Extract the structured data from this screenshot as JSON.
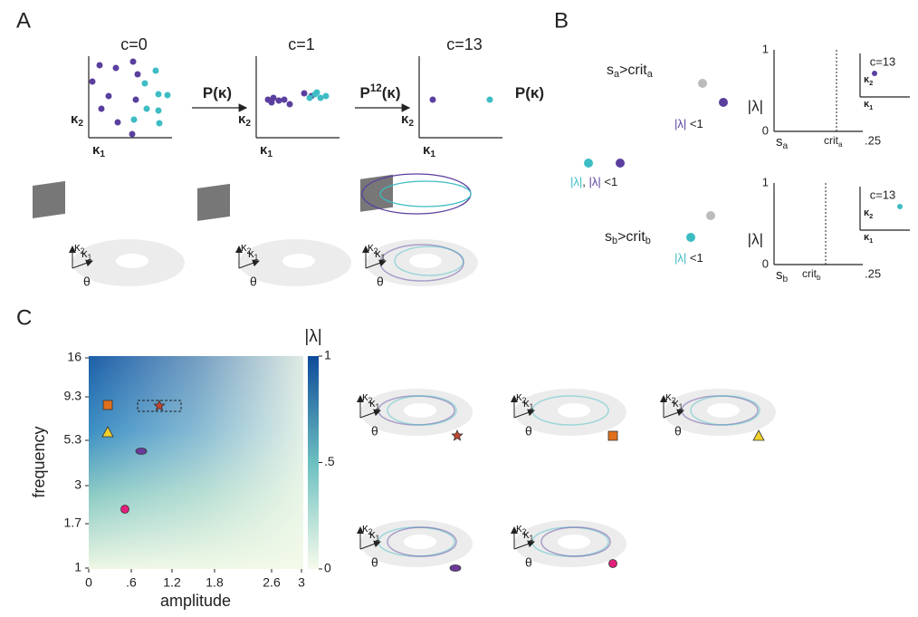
{
  "panel_labels": [
    "A",
    "B",
    "C"
  ],
  "A": {
    "plots": [
      {
        "title": "c=0"
      },
      {
        "title": "c=1"
      },
      {
        "title": "c=13"
      }
    ],
    "axis": {
      "x": {
        "base": "κ",
        "sub": "1"
      },
      "y": {
        "base": "κ",
        "sub": "2"
      }
    },
    "maps": [
      {
        "pre": "P(κ)"
      },
      {
        "pre": "P",
        "sup": "12",
        "post": "(κ)"
      },
      {
        "pre": "P(κ)"
      }
    ]
  },
  "torus_axes": {
    "k2": {
      "base": "κ",
      "sub": "2"
    },
    "k1": {
      "base": "κ",
      "sub": "1"
    },
    "theta": "θ"
  },
  "B": {
    "transitions": [
      {
        "s": "s",
        "s_sub": "a",
        "rel": ">crit",
        "crit_sub": "a"
      },
      {
        "s": "s",
        "s_sub": "b",
        "rel": ">crit",
        "crit_sub": "b"
      }
    ],
    "start_stability": {
      "teal": "|λ|",
      "sep": ", ",
      "purple": "|λ|",
      "rest": " <1"
    },
    "a_stability": {
      "purple": "|λ|",
      "rest": " <1"
    },
    "b_stability": {
      "teal": "|λ|",
      "rest": " <1"
    },
    "plots": [
      {
        "y_label": "|λ|",
        "yticks": [
          "1",
          "0"
        ],
        "x_start": {
          "base": "s",
          "sub": "a"
        },
        "crit": {
          "base": "crit",
          "sub": "a"
        },
        "x_end": ".25",
        "inset_title": "c=13"
      },
      {
        "y_label": "|λ|",
        "yticks": [
          "1",
          "0"
        ],
        "x_start": {
          "base": "s",
          "sub": "b"
        },
        "crit": {
          "base": "crit",
          "sub": "b"
        },
        "x_end": ".25",
        "inset_title": "c=13"
      }
    ]
  },
  "C": {
    "y_label": "frequency",
    "x_label": "amplitude",
    "yticks": [
      "16",
      "9.3",
      "5.3",
      "3",
      "1.7",
      "1"
    ],
    "xticks": [
      "0",
      ".6",
      "1.2",
      "1.8",
      "2.6",
      "3"
    ],
    "colorbar": {
      "title": "|λ|",
      "ticks": [
        "1",
        ".5",
        "0"
      ]
    }
  }
}
